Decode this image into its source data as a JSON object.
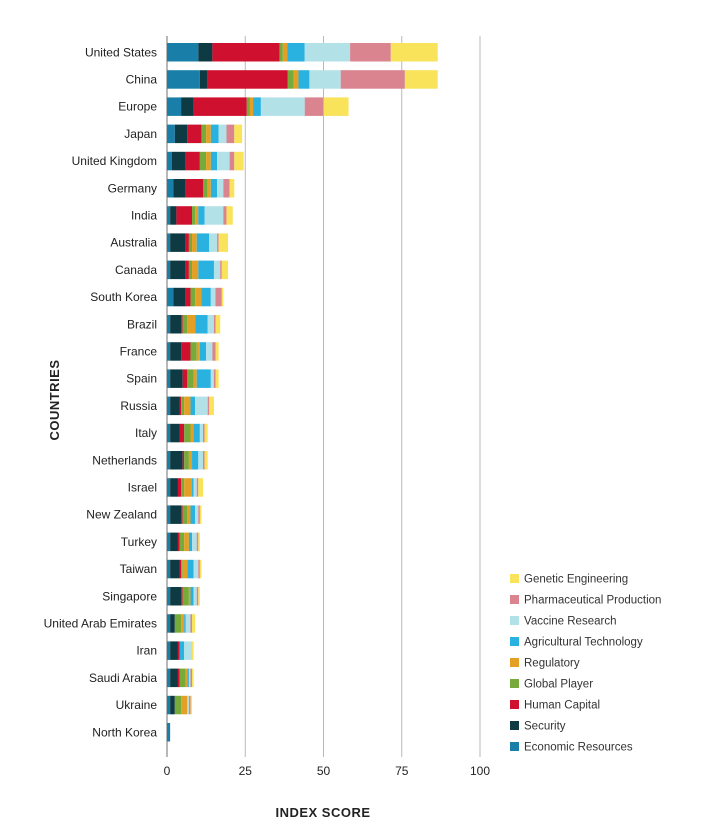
{
  "chart_data": {
    "type": "bar",
    "orientation": "horizontal",
    "stacked": true,
    "xlabel": "INDEX SCORE",
    "ylabel": "COUNTRIES",
    "xlim": [
      0,
      100
    ],
    "xticks": [
      0,
      25,
      50,
      75,
      100
    ],
    "grid": "vertical",
    "legend_position": "bottom-right",
    "categories": [
      "United States",
      "China",
      "Europe",
      "Japan",
      "United Kingdom",
      "Germany",
      "India",
      "Australia",
      "Canada",
      "South Korea",
      "Brazil",
      "France",
      "Spain",
      "Russia",
      "Italy",
      "Netherlands",
      "Israel",
      "New Zealand",
      "Turkey",
      "Taiwan",
      "Singapore",
      "United Arab Emirates",
      "Iran",
      "Saudi Arabia",
      "Ukraine",
      "North Korea"
    ],
    "series": [
      {
        "name": "Economic Resources",
        "color": "#1a7fa8",
        "values": [
          10,
          10.5,
          4.5,
          2.5,
          1.5,
          2,
          1,
          1,
          1,
          2,
          1,
          1,
          1,
          1,
          1,
          1,
          1,
          1,
          1,
          1,
          1,
          1,
          1,
          1,
          1,
          1
        ]
      },
      {
        "name": "Security",
        "color": "#0e3b43",
        "values": [
          4.5,
          2.5,
          4,
          4,
          4.5,
          4,
          2,
          5,
          5,
          4,
          3.5,
          3.5,
          4,
          3,
          3,
          4,
          2.5,
          3.5,
          2.5,
          3,
          3.5,
          1.5,
          2.5,
          2.5,
          1.5,
          0
        ]
      },
      {
        "name": "Human Capital",
        "color": "#d0102f",
        "values": [
          21.5,
          25.5,
          17,
          4.5,
          4.5,
          5.5,
          5,
          1,
          1,
          1.5,
          0.5,
          3,
          1.5,
          0.5,
          1.5,
          0.5,
          1,
          0.5,
          0.5,
          0.5,
          0.5,
          0,
          0.5,
          0.5,
          0,
          0
        ]
      },
      {
        "name": "Global Player",
        "color": "#76ab3c",
        "values": [
          1,
          2,
          1,
          1.5,
          2,
          1.5,
          1,
          1,
          1,
          1.5,
          1.5,
          2,
          2,
          1,
          2,
          1.5,
          1,
          1.5,
          1.5,
          0.5,
          2,
          2,
          0,
          2,
          2,
          0
        ]
      },
      {
        "name": "Regulatory",
        "color": "#e3a024",
        "values": [
          1.5,
          1.5,
          1,
          1.5,
          1.5,
          1,
          1,
          1.5,
          2,
          2,
          2.5,
          1,
          1,
          2,
          1,
          1,
          2.5,
          1,
          1.5,
          1.5,
          0.5,
          1,
          0,
          0.5,
          2,
          0
        ]
      },
      {
        "name": "Agricultural Technology",
        "color": "#29b1e0",
        "values": [
          5.5,
          3.5,
          2.5,
          2.5,
          2,
          2,
          2,
          4,
          5,
          3,
          4,
          2,
          4.5,
          1.5,
          2,
          2,
          0.5,
          1.5,
          1,
          2,
          1,
          0.5,
          1.5,
          0.5,
          0,
          0
        ]
      },
      {
        "name": "Vaccine Research",
        "color": "#b2e1e8",
        "values": [
          14.5,
          10,
          14,
          2.5,
          4,
          2,
          6,
          2.5,
          2,
          1.5,
          2,
          2,
          1,
          4,
          1,
          1.5,
          1,
          1,
          1.5,
          1.5,
          1,
          1.5,
          2.5,
          0.5,
          0.5,
          0
        ]
      },
      {
        "name": "Pharmaceutical Production",
        "color": "#d9848f",
        "values": [
          13,
          20.5,
          6,
          2.5,
          1.5,
          2,
          1,
          0.5,
          0.5,
          2,
          0.5,
          1,
          0.5,
          0.5,
          0.5,
          0.5,
          0.5,
          0.5,
          0.5,
          0.5,
          0.5,
          0.5,
          0,
          0.5,
          0.5,
          0
        ]
      },
      {
        "name": "Genetic Engineering",
        "color": "#f8e35a",
        "values": [
          15,
          10.5,
          8,
          2.5,
          3,
          1.5,
          2,
          3,
          2,
          0.5,
          1.5,
          1,
          1,
          1.5,
          1,
          1,
          1.5,
          0.5,
          0.5,
          0.5,
          0.5,
          1,
          0.5,
          0.5,
          0.5,
          0
        ]
      }
    ]
  }
}
